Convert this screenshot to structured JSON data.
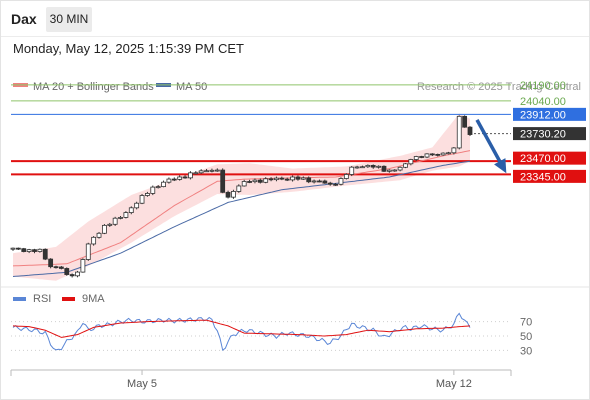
{
  "header": {
    "symbol": "Dax",
    "timeframe": "30 MIN",
    "datetime": "Monday, May 12, 2025 1:15:39 PM CET"
  },
  "legend": {
    "ma20_label": "MA 20 + Bollinger Bands",
    "ma50_label": "MA 50",
    "credit": "Research © 2025 Trading Central",
    "rsi_label": "RSI",
    "rsi_ma_label": "9MA"
  },
  "colors": {
    "ma20": "#f08080",
    "bollinger_fill": "#fbd9d9",
    "ma50": "#4a6aa5",
    "target_line": "#8fc46a",
    "pivot_line": "#2f6fe0",
    "support_line": "#e01010",
    "current_tag": "#333333",
    "arrow": "#2a5ea8",
    "rsi_line": "#5a86d6",
    "rsi_ma": "#e01010",
    "candle_up": "#ffffff",
    "candle_down": "#333333"
  },
  "chart_data": [
    {
      "type": "candlestick",
      "ylim": [
        22300,
        24350
      ],
      "levels": [
        {
          "value": 24190.0,
          "label": "24190.00",
          "role": "target"
        },
        {
          "value": 24040.0,
          "label": "24040.00",
          "role": "target"
        },
        {
          "value": 23912.0,
          "label": "23912.00",
          "role": "pivot"
        },
        {
          "value": 23730.2,
          "label": "23730.20",
          "role": "current"
        },
        {
          "value": 23470.0,
          "label": "23470.00",
          "role": "support"
        },
        {
          "value": 23345.0,
          "label": "23345.00",
          "role": "support"
        }
      ],
      "x_ticks": [
        {
          "index": 24,
          "label": "May 5"
        },
        {
          "index": 82,
          "label": "May 12"
        }
      ],
      "anchors": [
        [
          0,
          22640
        ],
        [
          5,
          22620
        ],
        [
          7,
          22480
        ],
        [
          9,
          22460
        ],
        [
          10,
          22380
        ],
        [
          12,
          22420
        ],
        [
          14,
          22680
        ],
        [
          17,
          22860
        ],
        [
          20,
          22940
        ],
        [
          23,
          23080
        ],
        [
          26,
          23220
        ],
        [
          29,
          23290
        ],
        [
          32,
          23330
        ],
        [
          35,
          23375
        ],
        [
          37,
          23395
        ],
        [
          38,
          23370
        ],
        [
          39,
          23180
        ],
        [
          40,
          23120
        ],
        [
          41,
          23200
        ],
        [
          43,
          23270
        ],
        [
          46,
          23290
        ],
        [
          49,
          23300
        ],
        [
          52,
          23310
        ],
        [
          55,
          23290
        ],
        [
          57,
          23280
        ],
        [
          59,
          23240
        ],
        [
          61,
          23300
        ],
        [
          63,
          23400
        ],
        [
          65,
          23430
        ],
        [
          67,
          23420
        ],
        [
          69,
          23385
        ],
        [
          71,
          23390
        ],
        [
          73,
          23430
        ],
        [
          74,
          23500
        ],
        [
          76,
          23520
        ],
        [
          78,
          23530
        ],
        [
          80,
          23545
        ],
        [
          82,
          23575
        ],
        [
          83,
          23900
        ],
        [
          84,
          23790
        ],
        [
          85,
          23730
        ]
      ],
      "ma20": [
        [
          0,
          22480
        ],
        [
          10,
          22500
        ],
        [
          20,
          22700
        ],
        [
          30,
          23050
        ],
        [
          38,
          23280
        ],
        [
          43,
          23300
        ],
        [
          50,
          23310
        ],
        [
          60,
          23320
        ],
        [
          70,
          23400
        ],
        [
          80,
          23520
        ],
        [
          85,
          23570
        ]
      ],
      "bollinger_upper": [
        [
          0,
          22600
        ],
        [
          8,
          22660
        ],
        [
          14,
          22900
        ],
        [
          22,
          23150
        ],
        [
          30,
          23300
        ],
        [
          38,
          23440
        ],
        [
          44,
          23450
        ],
        [
          52,
          23400
        ],
        [
          62,
          23420
        ],
        [
          72,
          23520
        ],
        [
          78,
          23600
        ],
        [
          83,
          23920
        ],
        [
          85,
          23870
        ]
      ],
      "bollinger_lower": [
        [
          0,
          22380
        ],
        [
          8,
          22340
        ],
        [
          14,
          22480
        ],
        [
          22,
          22700
        ],
        [
          30,
          22950
        ],
        [
          38,
          23160
        ],
        [
          44,
          23150
        ],
        [
          52,
          23180
        ],
        [
          62,
          23240
        ],
        [
          72,
          23290
        ],
        [
          78,
          23380
        ],
        [
          83,
          23420
        ],
        [
          85,
          23470
        ]
      ],
      "ma50": [
        [
          0,
          22380
        ],
        [
          10,
          22420
        ],
        [
          20,
          22600
        ],
        [
          30,
          22850
        ],
        [
          40,
          23080
        ],
        [
          50,
          23200
        ],
        [
          60,
          23260
        ],
        [
          70,
          23320
        ],
        [
          80,
          23430
        ],
        [
          85,
          23470
        ]
      ]
    },
    {
      "type": "line",
      "ylim": [
        0,
        100
      ],
      "y_ticks": [
        70,
        50,
        30
      ],
      "rsi": [
        [
          0,
          62
        ],
        [
          2,
          60
        ],
        [
          4,
          58
        ],
        [
          6,
          54
        ],
        [
          7,
          40
        ],
        [
          8,
          28
        ],
        [
          9,
          34
        ],
        [
          10,
          42
        ],
        [
          12,
          55
        ],
        [
          13,
          70
        ],
        [
          14,
          58
        ],
        [
          16,
          64
        ],
        [
          18,
          66
        ],
        [
          20,
          70
        ],
        [
          22,
          72
        ],
        [
          24,
          70
        ],
        [
          26,
          71
        ],
        [
          28,
          72
        ],
        [
          30,
          71
        ],
        [
          32,
          72
        ],
        [
          34,
          73
        ],
        [
          36,
          74
        ],
        [
          37,
          72
        ],
        [
          38,
          58
        ],
        [
          39,
          30
        ],
        [
          40,
          42
        ],
        [
          41,
          52
        ],
        [
          43,
          58
        ],
        [
          45,
          56
        ],
        [
          47,
          52
        ],
        [
          49,
          50
        ],
        [
          51,
          54
        ],
        [
          53,
          52
        ],
        [
          55,
          50
        ],
        [
          57,
          45
        ],
        [
          59,
          40
        ],
        [
          60,
          46
        ],
        [
          61,
          50
        ],
        [
          62,
          60
        ],
        [
          63,
          66
        ],
        [
          65,
          62
        ],
        [
          67,
          58
        ],
        [
          69,
          48
        ],
        [
          70,
          52
        ],
        [
          72,
          60
        ],
        [
          73,
          62
        ],
        [
          74,
          60
        ],
        [
          76,
          64
        ],
        [
          78,
          60
        ],
        [
          80,
          58
        ],
        [
          82,
          66
        ],
        [
          83,
          83
        ],
        [
          84,
          70
        ],
        [
          85,
          64
        ]
      ],
      "ma9": [
        [
          0,
          64
        ],
        [
          3,
          63
        ],
        [
          6,
          58
        ],
        [
          9,
          48
        ],
        [
          12,
          52
        ],
        [
          15,
          62
        ],
        [
          20,
          68
        ],
        [
          25,
          70
        ],
        [
          30,
          71
        ],
        [
          36,
          72
        ],
        [
          40,
          64
        ],
        [
          43,
          54
        ],
        [
          48,
          53
        ],
        [
          53,
          52
        ],
        [
          58,
          50
        ],
        [
          62,
          52
        ],
        [
          66,
          58
        ],
        [
          70,
          56
        ],
        [
          75,
          60
        ],
        [
          80,
          61
        ],
        [
          83,
          63
        ],
        [
          85,
          64
        ]
      ]
    }
  ]
}
